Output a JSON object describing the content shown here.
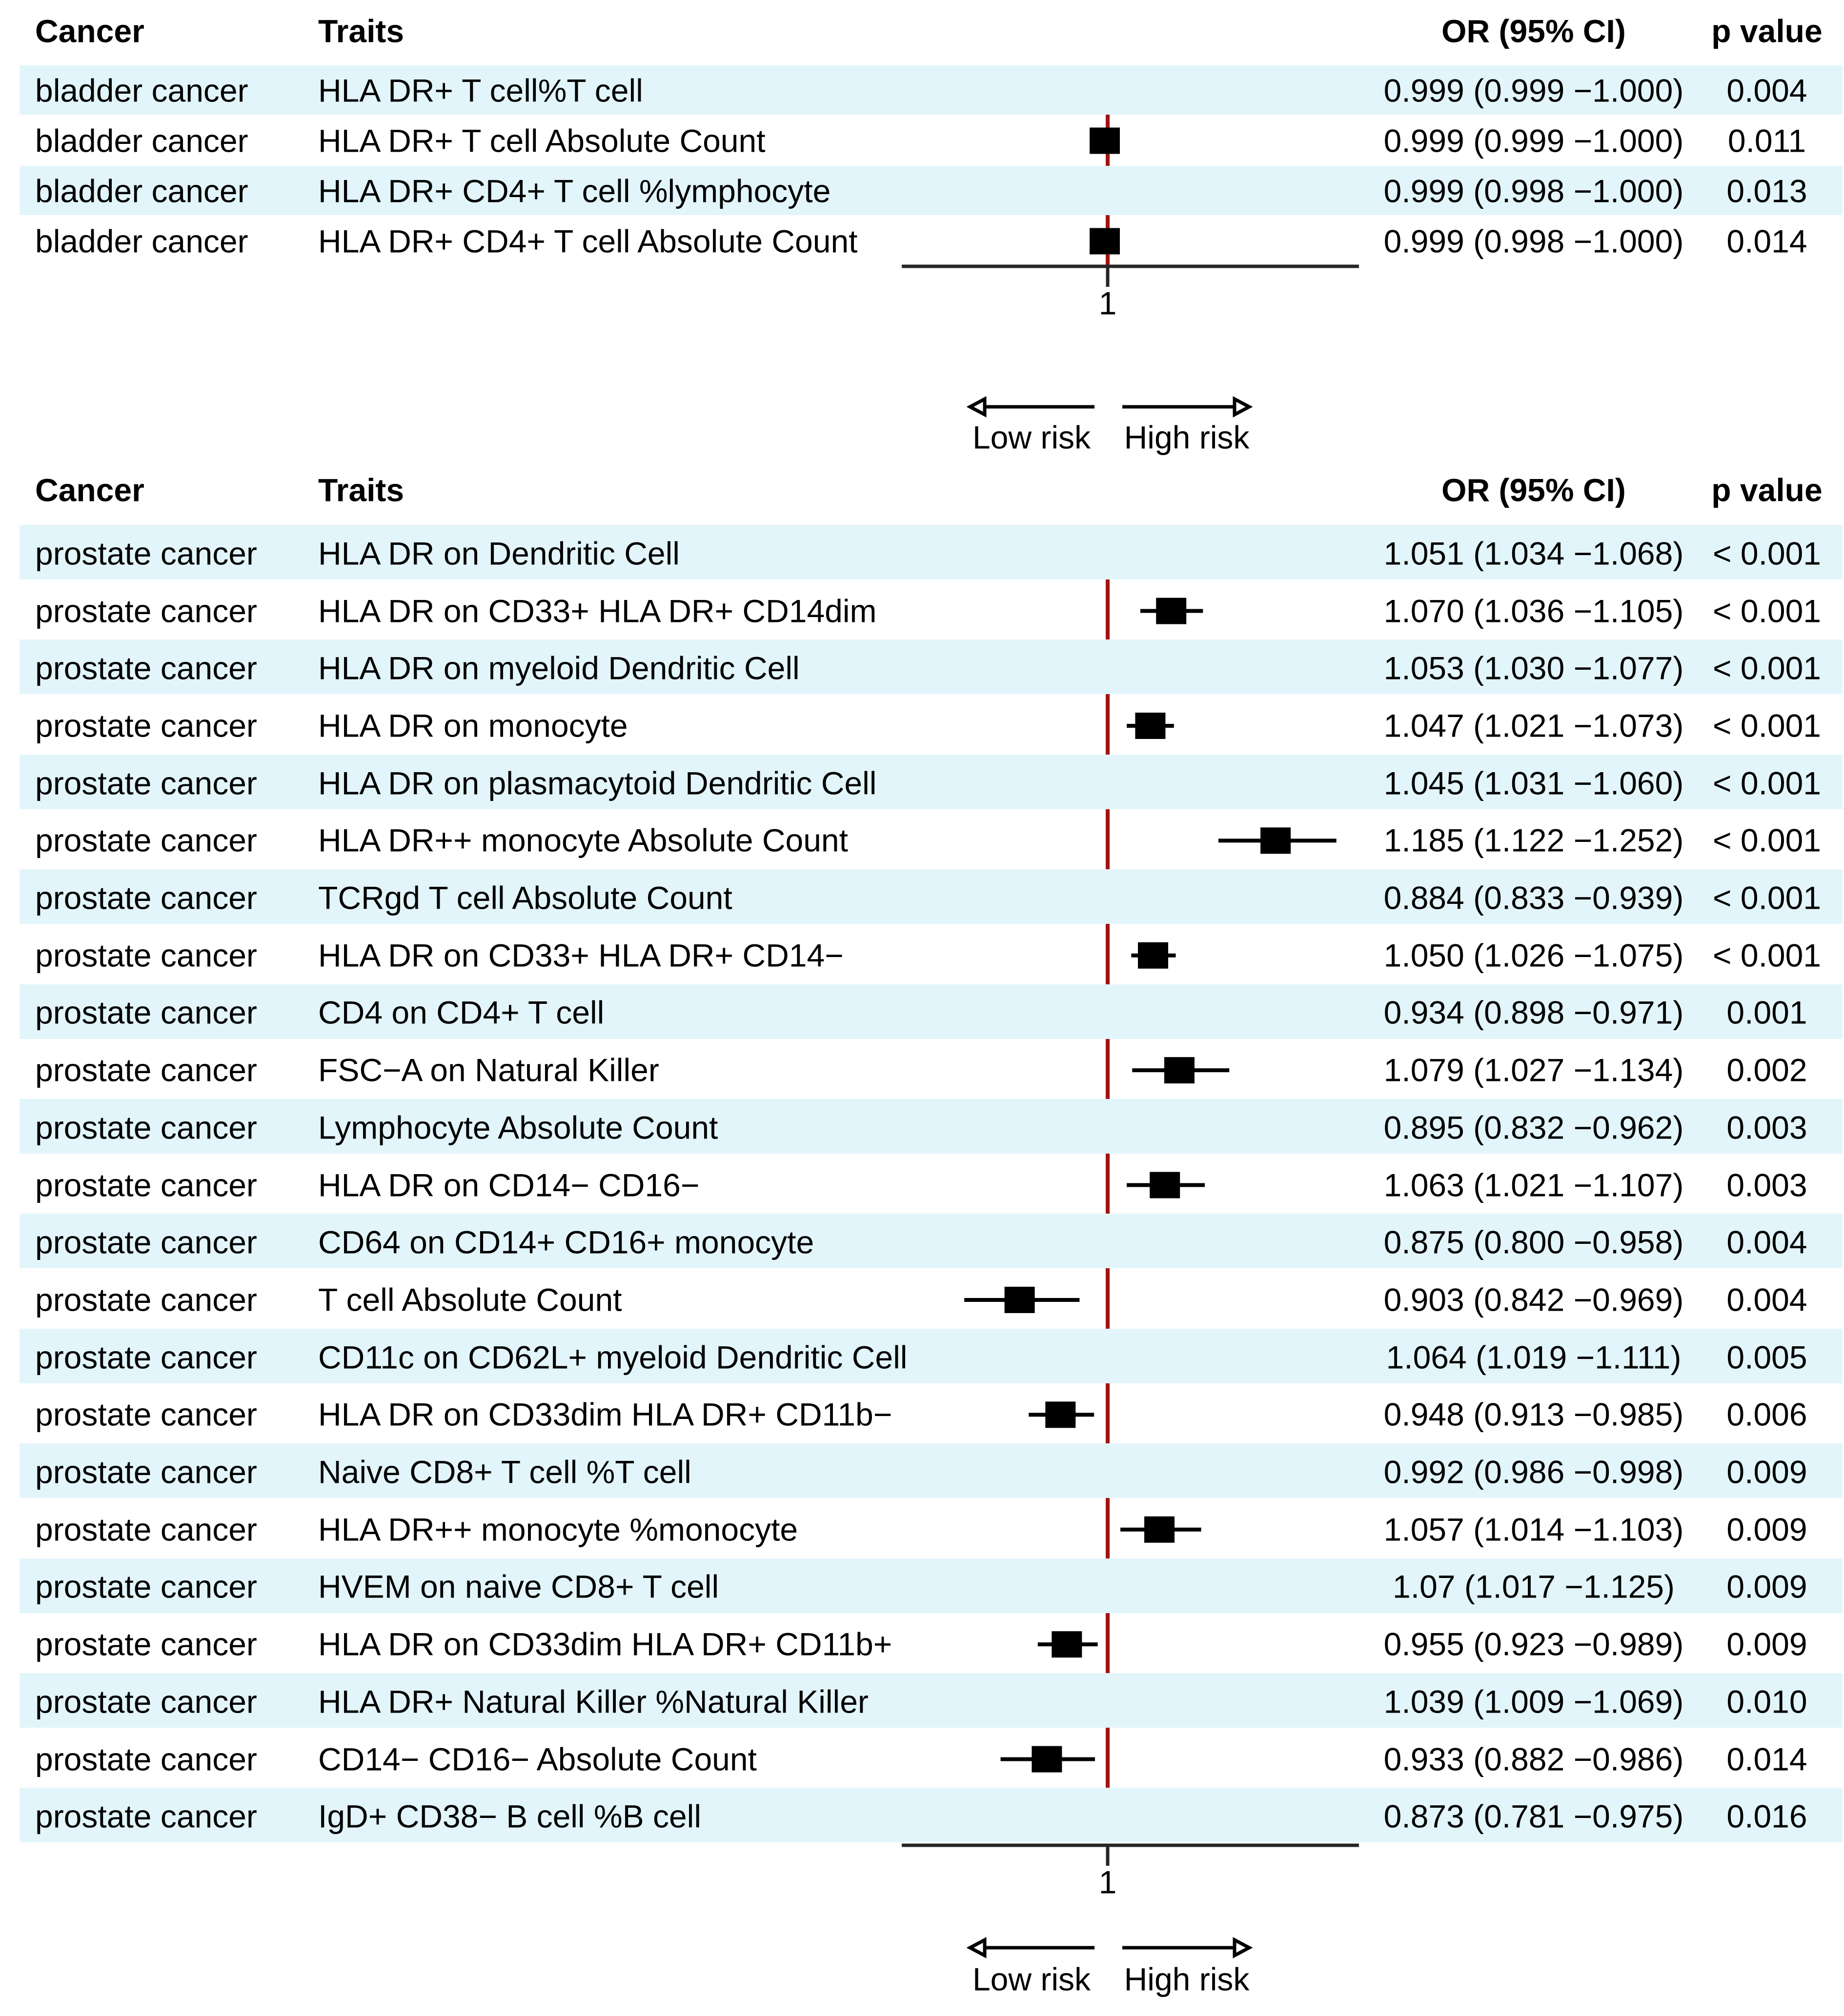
{
  "figure_type": "forest-plot",
  "colors": {
    "background": "#ffffff",
    "stripe": "#e2f5fa",
    "ref_line": "#a11212",
    "axis": "#262626",
    "marker": "#000000",
    "text": "#000000"
  },
  "chart_data": [
    {
      "type": "scatter",
      "subtype": "forest",
      "columns": {
        "cancer": "Cancer",
        "traits": "Traits",
        "or": "OR (95% CI)",
        "p": "p value"
      },
      "x_ref": 1,
      "x_tick_label": "1",
      "low_risk_label": "Low risk",
      "high_risk_label": "High risk",
      "xlim": [
        0.92,
        1.09
      ],
      "legend_position": "none",
      "grid": false,
      "rows": [
        {
          "cancer": "bladder cancer",
          "trait": "HLA DR+ T cell%T cell",
          "or": 0.999,
          "ci": [
            0.999,
            1.0
          ],
          "or_label": "0.999 (0.999 −1.000)",
          "p": "0.004"
        },
        {
          "cancer": "bladder cancer",
          "trait": "HLA DR+ T cell Absolute Count",
          "or": 0.999,
          "ci": [
            0.999,
            1.0
          ],
          "or_label": "0.999 (0.999 −1.000)",
          "p": "0.011"
        },
        {
          "cancer": "bladder cancer",
          "trait": "HLA DR+ CD4+ T cell %lymphocyte",
          "or": 0.999,
          "ci": [
            0.998,
            1.0
          ],
          "or_label": "0.999 (0.998 −1.000)",
          "p": "0.013"
        },
        {
          "cancer": "bladder cancer",
          "trait": "HLA DR+ CD4+ T cell Absolute Count",
          "or": 0.999,
          "ci": [
            0.998,
            1.0
          ],
          "or_label": "0.999 (0.998 −1.000)",
          "p": "0.014"
        }
      ]
    },
    {
      "type": "scatter",
      "subtype": "forest",
      "columns": {
        "cancer": "Cancer",
        "traits": "Traits",
        "or": "OR (95% CI)",
        "p": "p value"
      },
      "x_ref": 1,
      "x_tick_label": "1",
      "low_risk_label": "Low risk",
      "high_risk_label": "High risk",
      "xlim": [
        0.8,
        1.28
      ],
      "legend_position": "none",
      "grid": false,
      "rows": [
        {
          "cancer": "prostate cancer",
          "trait": "HLA DR on Dendritic Cell",
          "or": 1.051,
          "ci": [
            1.034,
            1.068
          ],
          "or_label": "1.051 (1.034 −1.068)",
          "p": "< 0.001"
        },
        {
          "cancer": "prostate cancer",
          "trait": "HLA DR on CD33+ HLA DR+ CD14dim",
          "or": 1.07,
          "ci": [
            1.036,
            1.105
          ],
          "or_label": "1.070 (1.036 −1.105)",
          "p": "< 0.001"
        },
        {
          "cancer": "prostate cancer",
          "trait": "HLA DR on myeloid Dendritic Cell",
          "or": 1.053,
          "ci": [
            1.03,
            1.077
          ],
          "or_label": "1.053 (1.030 −1.077)",
          "p": "< 0.001"
        },
        {
          "cancer": "prostate cancer",
          "trait": "HLA DR on monocyte",
          "or": 1.047,
          "ci": [
            1.021,
            1.073
          ],
          "or_label": "1.047 (1.021 −1.073)",
          "p": "< 0.001"
        },
        {
          "cancer": "prostate cancer",
          "trait": "HLA DR on plasmacytoid Dendritic Cell",
          "or": 1.045,
          "ci": [
            1.031,
            1.06
          ],
          "or_label": "1.045 (1.031 −1.060)",
          "p": "< 0.001"
        },
        {
          "cancer": "prostate cancer",
          "trait": "HLA DR++ monocyte Absolute Count",
          "or": 1.185,
          "ci": [
            1.122,
            1.252
          ],
          "or_label": "1.185 (1.122 −1.252)",
          "p": "< 0.001"
        },
        {
          "cancer": "prostate cancer",
          "trait": "TCRgd T cell Absolute Count",
          "or": 0.884,
          "ci": [
            0.833,
            0.939
          ],
          "or_label": "0.884 (0.833 −0.939)",
          "p": "< 0.001"
        },
        {
          "cancer": "prostate cancer",
          "trait": "HLA DR on CD33+ HLA DR+ CD14−",
          "or": 1.05,
          "ci": [
            1.026,
            1.075
          ],
          "or_label": "1.050 (1.026 −1.075)",
          "p": "< 0.001"
        },
        {
          "cancer": "prostate cancer",
          "trait": "CD4 on CD4+ T cell",
          "or": 0.934,
          "ci": [
            0.898,
            0.971
          ],
          "or_label": "0.934 (0.898 −0.971)",
          "p": "0.001"
        },
        {
          "cancer": "prostate cancer",
          "trait": "FSC−A on Natural Killer",
          "or": 1.079,
          "ci": [
            1.027,
            1.134
          ],
          "or_label": "1.079 (1.027 −1.134)",
          "p": "0.002"
        },
        {
          "cancer": "prostate cancer",
          "trait": "Lymphocyte Absolute Count",
          "or": 0.895,
          "ci": [
            0.832,
            0.962
          ],
          "or_label": "0.895 (0.832 −0.962)",
          "p": "0.003"
        },
        {
          "cancer": "prostate cancer",
          "trait": "HLA DR on CD14− CD16−",
          "or": 1.063,
          "ci": [
            1.021,
            1.107
          ],
          "or_label": "1.063 (1.021 −1.107)",
          "p": "0.003"
        },
        {
          "cancer": "prostate cancer",
          "trait": "CD64 on CD14+ CD16+ monocyte",
          "or": 0.875,
          "ci": [
            0.8,
            0.958
          ],
          "or_label": "0.875 (0.800 −0.958)",
          "p": "0.004"
        },
        {
          "cancer": "prostate cancer",
          "trait": "T cell Absolute Count",
          "or": 0.903,
          "ci": [
            0.842,
            0.969
          ],
          "or_label": "0.903 (0.842 −0.969)",
          "p": "0.004"
        },
        {
          "cancer": "prostate cancer",
          "trait": "CD11c on CD62L+ myeloid Dendritic Cell",
          "or": 1.064,
          "ci": [
            1.019,
            1.111
          ],
          "or_label": "1.064 (1.019 −1.111)",
          "p": "0.005"
        },
        {
          "cancer": "prostate cancer",
          "trait": "HLA DR on CD33dim HLA DR+ CD11b−",
          "or": 0.948,
          "ci": [
            0.913,
            0.985
          ],
          "or_label": "0.948 (0.913 −0.985)",
          "p": "0.006"
        },
        {
          "cancer": "prostate cancer",
          "trait": "Naive CD8+ T cell %T cell",
          "or": 0.992,
          "ci": [
            0.986,
            0.998
          ],
          "or_label": "0.992 (0.986 −0.998)",
          "p": "0.009"
        },
        {
          "cancer": "prostate cancer",
          "trait": "HLA DR++ monocyte %monocyte",
          "or": 1.057,
          "ci": [
            1.014,
            1.103
          ],
          "or_label": "1.057 (1.014 −1.103)",
          "p": "0.009"
        },
        {
          "cancer": "prostate cancer",
          "trait": "HVEM on naive CD8+ T cell",
          "or": 1.07,
          "ci": [
            1.017,
            1.125
          ],
          "or_label": "1.07 (1.017 −1.125)",
          "p": "0.009"
        },
        {
          "cancer": "prostate cancer",
          "trait": "HLA DR on CD33dim HLA DR+ CD11b+",
          "or": 0.955,
          "ci": [
            0.923,
            0.989
          ],
          "or_label": "0.955 (0.923 −0.989)",
          "p": "0.009"
        },
        {
          "cancer": "prostate cancer",
          "trait": "HLA DR+ Natural Killer %Natural Killer",
          "or": 1.039,
          "ci": [
            1.009,
            1.069
          ],
          "or_label": "1.039 (1.009 −1.069)",
          "p": "0.010"
        },
        {
          "cancer": "prostate cancer",
          "trait": "CD14− CD16− Absolute Count",
          "or": 0.933,
          "ci": [
            0.882,
            0.986
          ],
          "or_label": "0.933 (0.882 −0.986)",
          "p": "0.014"
        },
        {
          "cancer": "prostate cancer",
          "trait": "IgD+ CD38− B cell %B cell",
          "or": 0.873,
          "ci": [
            0.781,
            0.975
          ],
          "or_label": "0.873 (0.781 −0.975)",
          "p": "0.016"
        }
      ]
    }
  ]
}
